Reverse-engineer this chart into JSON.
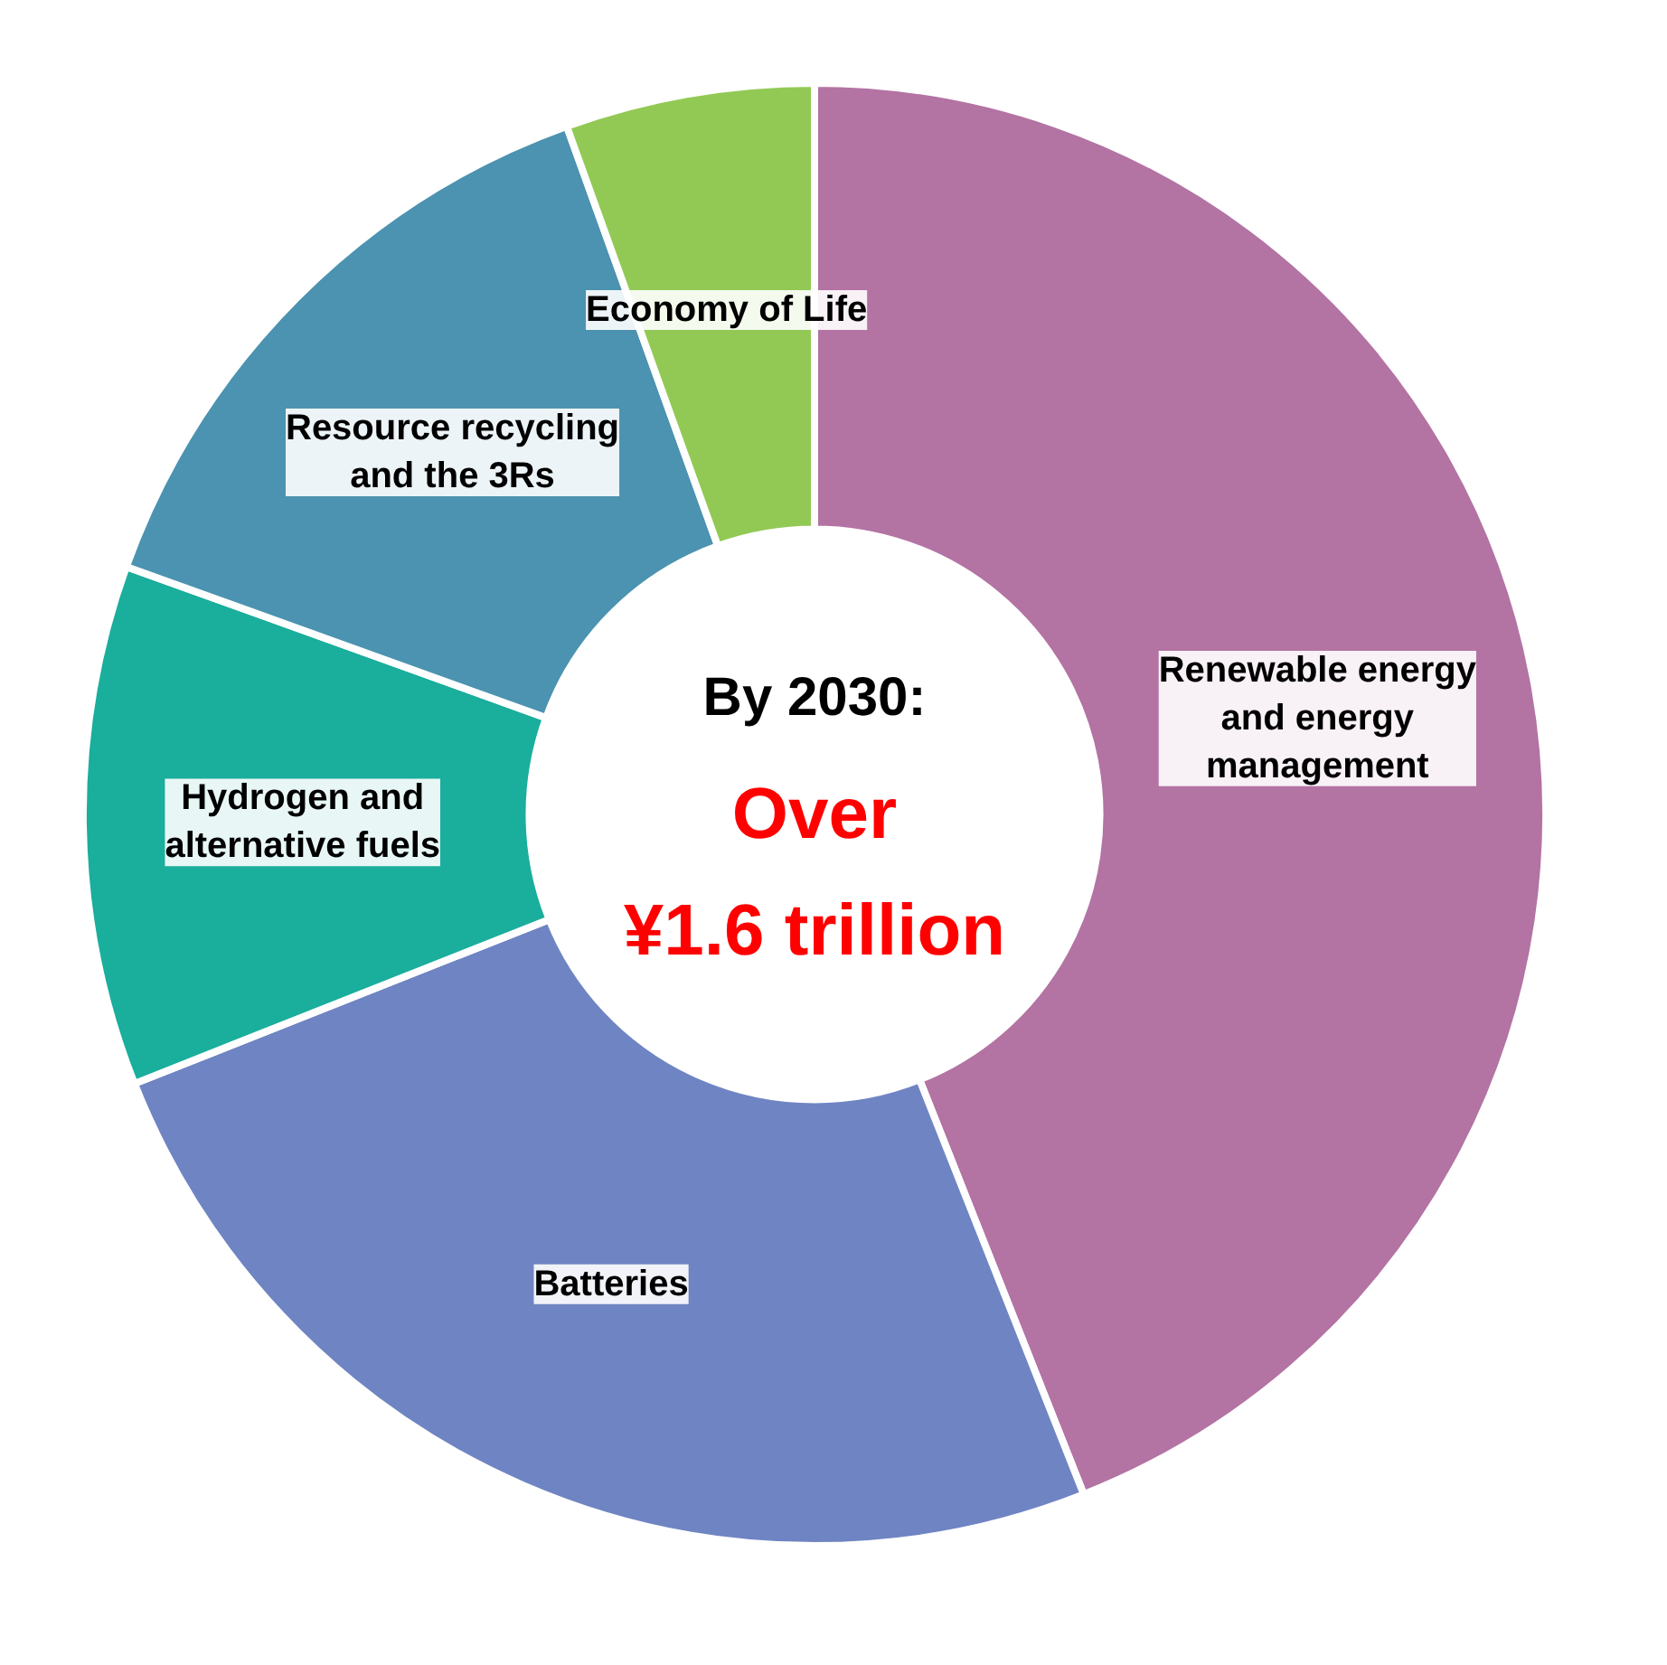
{
  "chart_data": {
    "type": "donut",
    "categories": [
      "Renewable energy and energy management",
      "Batteries",
      "Hydrogen and alternative fuels",
      "Resource recycling and the 3Rs",
      "Economy of Life"
    ],
    "values": [
      44,
      25,
      11.5,
      14,
      5.5
    ],
    "colors": [
      "#b373a3",
      "#6f84c2",
      "#1aae9c",
      "#4b93b0",
      "#92c955"
    ],
    "annotations": [
      "By 2030:",
      "Over",
      "¥1.6 trillion"
    ],
    "legend": false
  }
}
